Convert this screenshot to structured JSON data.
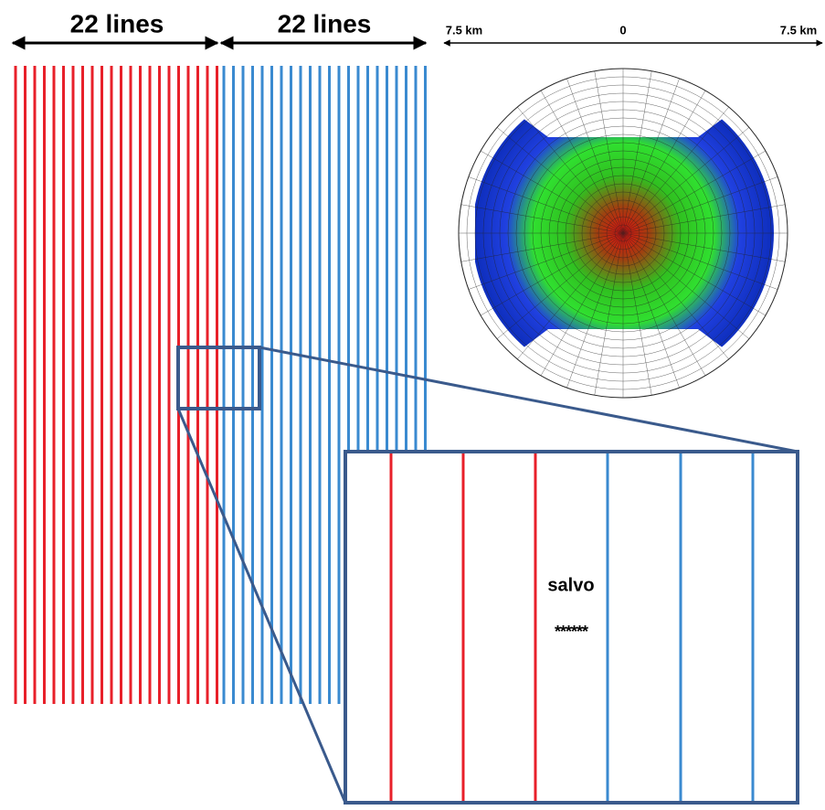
{
  "header": {
    "left_label": "22 lines",
    "right_label": "22 lines"
  },
  "rose": {
    "scale_left": "7.5 km",
    "scale_center": "0",
    "scale_right": "7.5 km"
  },
  "inset": {
    "label": "salvo",
    "shots": "******"
  }
}
